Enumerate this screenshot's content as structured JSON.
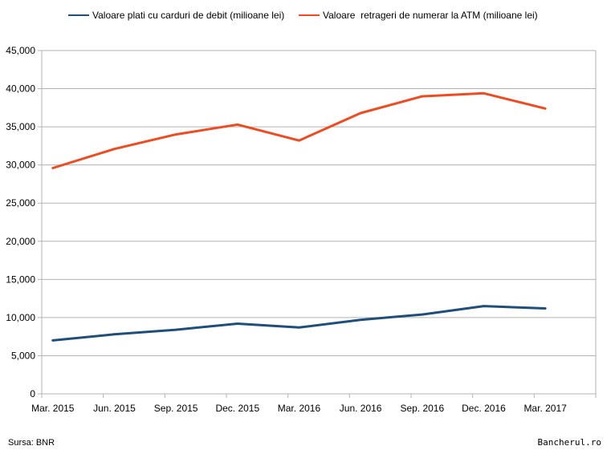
{
  "chart_data": {
    "type": "line",
    "categories": [
      "Mar. 2015",
      "Jun. 2015",
      "Sep. 2015",
      "Dec. 2015",
      "Mar. 2016",
      "Jun. 2016",
      "Sep. 2016",
      "Dec. 2016",
      "Mar. 2017"
    ],
    "series": [
      {
        "name": "Valoare plati cu carduri de debit (milioane lei)",
        "color": "#1f4e79",
        "values": [
          7000,
          7800,
          8400,
          9200,
          8700,
          9700,
          10400,
          11500,
          11200
        ]
      },
      {
        "name": "Valoare  retrageri de numerar la ATM (milioane lei)",
        "color": "#f04a1f",
        "values": [
          29600,
          32100,
          34000,
          35300,
          33200,
          36800,
          39000,
          39400,
          37400
        ]
      }
    ],
    "ylim": [
      0,
      45000
    ],
    "y_ticks": [
      "0",
      "5,000",
      "10,000",
      "15,000",
      "20,000",
      "25,000",
      "30,000",
      "35,000",
      "40,000",
      "45,000"
    ],
    "y_tick_values": [
      0,
      5000,
      10000,
      15000,
      20000,
      25000,
      30000,
      35000,
      40000,
      45000
    ],
    "grid": true,
    "legend_position": "top"
  },
  "footer": {
    "source": "Sursa: BNR",
    "credit": "Bancherul.ro"
  }
}
